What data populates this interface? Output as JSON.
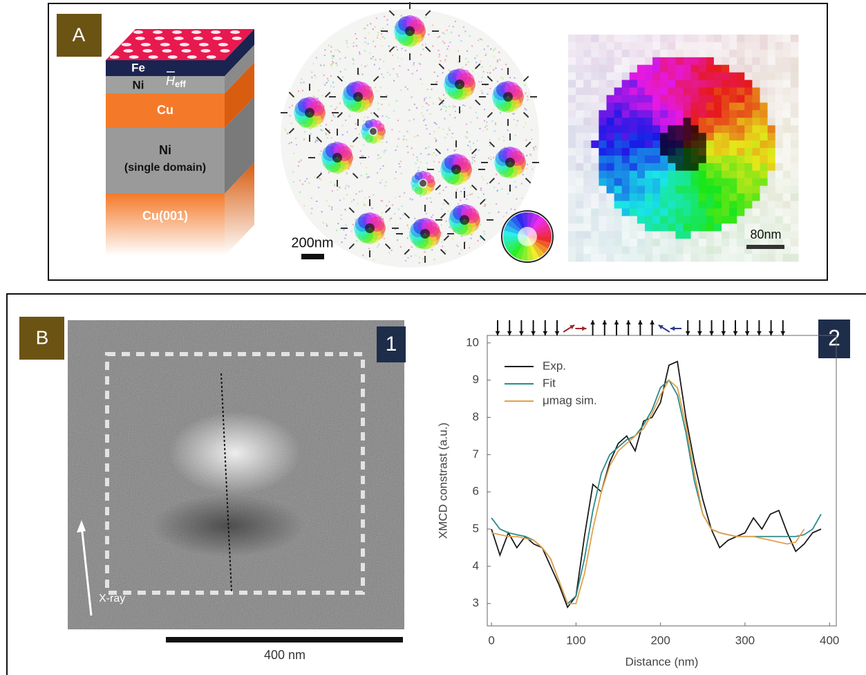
{
  "panel_a": {
    "label": "A",
    "layers": [
      {
        "name": "Fe"
      },
      {
        "name": "Ni"
      },
      {
        "name": "Cu"
      },
      {
        "name": "Ni",
        "note": "(single domain)"
      },
      {
        "name": "Cu(001)"
      }
    ],
    "field_symbol": "H",
    "field_subscript": "eff",
    "scale_bars": [
      "200nm",
      "80nm"
    ]
  },
  "panel_b": {
    "label": "B",
    "image_label": "1",
    "chart_label": "2",
    "xray_label": "X-ray",
    "scale_bar": "400 nm"
  },
  "chart_data": {
    "type": "line",
    "x_label": "Distance (nm)",
    "y_label": "XMCD constrast (a.u.)",
    "x": [
      0,
      10,
      20,
      30,
      40,
      50,
      60,
      70,
      80,
      90,
      100,
      110,
      120,
      130,
      140,
      150,
      160,
      170,
      180,
      190,
      200,
      210,
      220,
      230,
      240,
      250,
      260,
      270,
      280,
      290,
      300,
      310,
      320,
      330,
      340,
      350,
      360,
      370,
      380,
      390
    ],
    "series": [
      {
        "name": "Exp.",
        "color": "#1a1a1a",
        "values": [
          5.0,
          4.3,
          4.9,
          4.5,
          4.8,
          4.6,
          4.5,
          4.0,
          3.5,
          2.9,
          3.2,
          4.8,
          6.2,
          6.0,
          6.8,
          7.3,
          7.5,
          7.1,
          7.9,
          8.0,
          8.4,
          9.4,
          9.5,
          8.0,
          6.8,
          5.8,
          5.0,
          4.5,
          4.7,
          4.8,
          4.9,
          5.3,
          5.0,
          5.4,
          5.5,
          4.9,
          4.4,
          4.6,
          4.9,
          5.0
        ]
      },
      {
        "name": "Fit",
        "color": "#2a8a8a",
        "values": [
          5.3,
          5.0,
          4.9,
          4.85,
          4.8,
          4.7,
          4.5,
          4.2,
          3.6,
          3.0,
          3.2,
          4.2,
          5.5,
          6.5,
          7.0,
          7.2,
          7.4,
          7.5,
          7.8,
          8.2,
          8.8,
          9.0,
          8.6,
          7.6,
          6.3,
          5.4,
          5.0,
          4.9,
          4.85,
          4.8,
          4.8,
          4.8,
          4.8,
          4.8,
          4.8,
          4.8,
          4.8,
          4.85,
          5.0,
          5.4
        ]
      },
      {
        "name": "μmag sim.",
        "color": "#e3a04a",
        "values": [
          4.9,
          4.85,
          4.8,
          4.8,
          4.75,
          4.7,
          4.5,
          4.2,
          3.6,
          3.0,
          3.0,
          3.8,
          5.0,
          6.0,
          6.7,
          7.1,
          7.3,
          7.5,
          7.7,
          8.1,
          8.6,
          9.0,
          8.8,
          7.8,
          6.5,
          5.4,
          5.0,
          4.9,
          4.85,
          4.8,
          4.8,
          4.8,
          4.75,
          4.7,
          4.65,
          4.6,
          4.65,
          5.0,
          null,
          null
        ]
      }
    ],
    "xlim": [
      -5,
      408
    ],
    "ylim": [
      2.4,
      10.2
    ],
    "xticks": [
      0,
      100,
      200,
      300,
      400
    ],
    "yticks": [
      3,
      4,
      5,
      6,
      7,
      8,
      9,
      10
    ],
    "legend": "upper left"
  }
}
